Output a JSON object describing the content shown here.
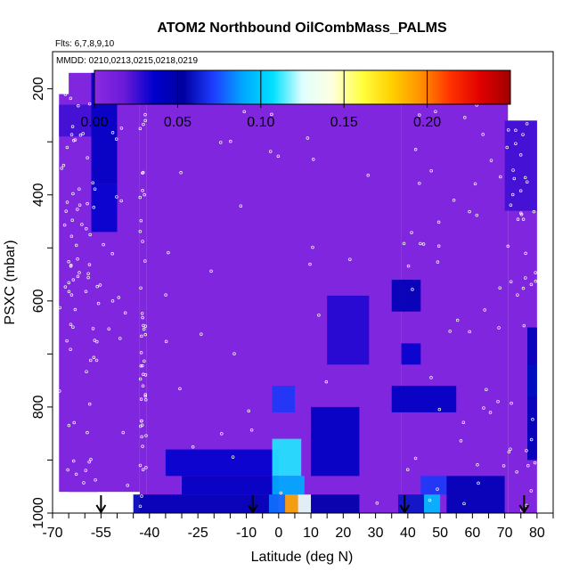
{
  "chart_data": {
    "type": "heatmap",
    "title": "ATOM2 Northbound OilCombMass_PALMS",
    "flights_label": "Flts: 6,7,8,9,10",
    "dates_label": "MMDD: 0210,0213,0215,0218,0219",
    "xlabel": "Latitude (deg N)",
    "ylabel": "PSXC (mbar)",
    "xlim": [
      -70,
      85
    ],
    "ylim": [
      1000,
      130
    ],
    "x_tick_labels": [
      "-70",
      "-55",
      "-40",
      "-25",
      "-10",
      "0",
      "10",
      "20",
      "30",
      "40",
      "50",
      "60",
      "70",
      "80"
    ],
    "y_tick_labels": [
      "200",
      "400",
      "600",
      "800",
      "1000"
    ],
    "colorbar": {
      "range": [
        0,
        0.25
      ],
      "tick_labels": [
        "0.00",
        "0.05",
        "0.10",
        "0.15",
        "0.20"
      ],
      "colors": [
        "#8a2be2",
        "#6a1ad8",
        "#0000cd",
        "#0000a0",
        "#1e3cff",
        "#00a8ff",
        "#00e0ff",
        "#e0ffff",
        "#ffffe0",
        "#ffff40",
        "#ffd000",
        "#ff9000",
        "#ff3000",
        "#e00000",
        "#a00000"
      ]
    },
    "background_value": 0.005,
    "features": [
      {
        "lat_range": [
          -58,
          -50
        ],
        "p_range": [
          170,
          380
        ],
        "value": 0.04
      },
      {
        "lat_range": [
          -58,
          -50
        ],
        "p_range": [
          380,
          470
        ],
        "value": 0.035
      },
      {
        "lat_range": [
          -68,
          -58
        ],
        "p_range": [
          230,
          290
        ],
        "value": 0.025
      },
      {
        "lat_range": [
          -50,
          -30
        ],
        "p_range": [
          170,
          220
        ],
        "value": 0.03
      },
      {
        "lat_range": [
          -30,
          0
        ],
        "p_range": [
          170,
          200
        ],
        "value": 0.02
      },
      {
        "lat_range": [
          -35,
          0
        ],
        "p_range": [
          880,
          930
        ],
        "value": 0.035
      },
      {
        "lat_range": [
          -30,
          0
        ],
        "p_range": [
          930,
          965
        ],
        "value": 0.04
      },
      {
        "lat_range": [
          -45,
          0
        ],
        "p_range": [
          965,
          1010
        ],
        "value": 0.045
      },
      {
        "lat_range": [
          -2,
          5
        ],
        "p_range": [
          760,
          810
        ],
        "value": 0.07
      },
      {
        "lat_range": [
          -2,
          7
        ],
        "p_range": [
          860,
          930
        ],
        "value": 0.11
      },
      {
        "lat_range": [
          -2,
          8
        ],
        "p_range": [
          930,
          965
        ],
        "value": 0.09
      },
      {
        "lat_range": [
          2,
          6
        ],
        "p_range": [
          965,
          1010
        ],
        "value": 0.19
      },
      {
        "lat_range": [
          -3,
          2
        ],
        "p_range": [
          965,
          1010
        ],
        "value": 0.08
      },
      {
        "lat_range": [
          6,
          10
        ],
        "p_range": [
          965,
          1010
        ],
        "value": 0.13
      },
      {
        "lat_range": [
          10,
          25
        ],
        "p_range": [
          800,
          930
        ],
        "value": 0.04
      },
      {
        "lat_range": [
          15,
          28
        ],
        "p_range": [
          590,
          720
        ],
        "value": 0.03
      },
      {
        "lat_range": [
          10,
          25
        ],
        "p_range": [
          965,
          1010
        ],
        "value": 0.05
      },
      {
        "lat_range": [
          35,
          44
        ],
        "p_range": [
          560,
          620
        ],
        "value": 0.045
      },
      {
        "lat_range": [
          38,
          44
        ],
        "p_range": [
          680,
          720
        ],
        "value": 0.035
      },
      {
        "lat_range": [
          35,
          55
        ],
        "p_range": [
          760,
          810
        ],
        "value": 0.04
      },
      {
        "lat_range": [
          44,
          52
        ],
        "p_range": [
          930,
          965
        ],
        "value": 0.07
      },
      {
        "lat_range": [
          45,
          50
        ],
        "p_range": [
          965,
          1010
        ],
        "value": 0.095
      },
      {
        "lat_range": [
          37,
          45
        ],
        "p_range": [
          965,
          1010
        ],
        "value": 0.06
      },
      {
        "lat_range": [
          52,
          70
        ],
        "p_range": [
          930,
          1010
        ],
        "value": 0.045
      },
      {
        "lat_range": [
          70,
          80
        ],
        "p_range": [
          260,
          430
        ],
        "value": 0.025
      },
      {
        "lat_range": [
          77,
          80
        ],
        "p_range": [
          720,
          780
        ],
        "value": 0.09
      },
      {
        "lat_range": [
          77,
          80
        ],
        "p_range": [
          650,
          900
        ],
        "value": 0.045
      }
    ],
    "coverage": [
      {
        "lat_range": [
          -68,
          -56
        ],
        "p_range": [
          210,
          960
        ]
      },
      {
        "lat_range": [
          -65,
          -43
        ],
        "p_range": [
          170,
          960
        ]
      },
      {
        "lat_range": [
          -43,
          -41
        ],
        "p_range": [
          170,
          1010
        ]
      },
      {
        "lat_range": [
          -41,
          38
        ],
        "p_range": [
          170,
          1010
        ]
      },
      {
        "lat_range": [
          38,
          71
        ],
        "p_range": [
          220,
          1010
        ]
      },
      {
        "lat_range": [
          71,
          80
        ],
        "p_range": [
          260,
          1010
        ]
      }
    ],
    "arrows_lat": [
      -55,
      -8,
      39,
      76
    ]
  }
}
